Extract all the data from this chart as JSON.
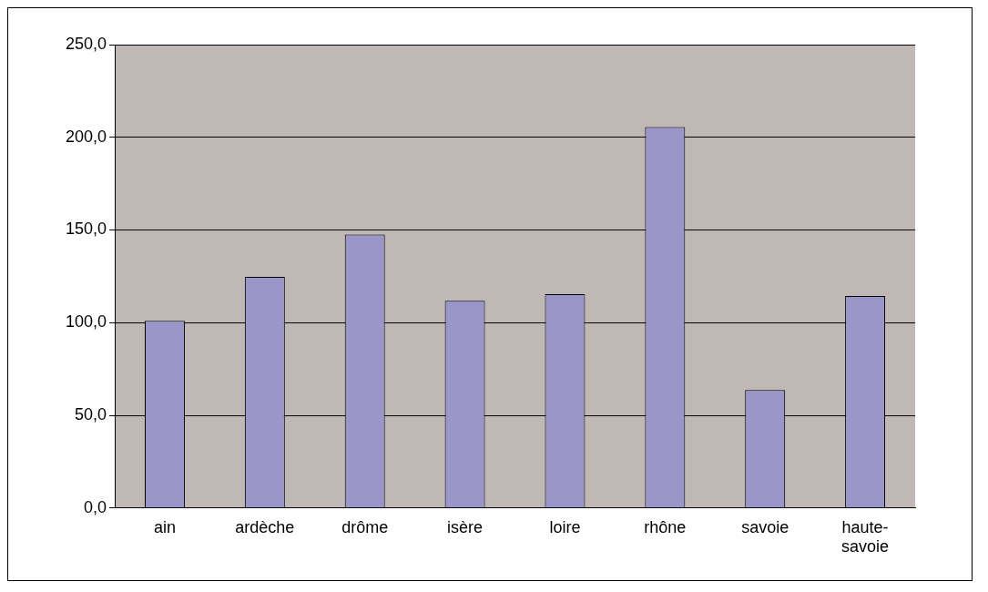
{
  "chart_data": {
    "type": "bar",
    "categories": [
      "ain",
      "ardèche",
      "drôme",
      "isère",
      "loire",
      "rhône",
      "savoie",
      "haute-savoie"
    ],
    "values": [
      101,
      124.7,
      147.5,
      111.8,
      115.4,
      205.5,
      63.7,
      114.4
    ],
    "color": "#9b96c9",
    "ylim": [
      0,
      250
    ],
    "yticks": [
      {
        "value": 0,
        "label": "0,0"
      },
      {
        "value": 50,
        "label": "50,0"
      },
      {
        "value": 100,
        "label": "100,0"
      },
      {
        "value": 150,
        "label": "150,0"
      },
      {
        "value": 200,
        "label": "200,0"
      },
      {
        "value": 250,
        "label": "250,0"
      }
    ],
    "grid": "y",
    "legend": false
  }
}
